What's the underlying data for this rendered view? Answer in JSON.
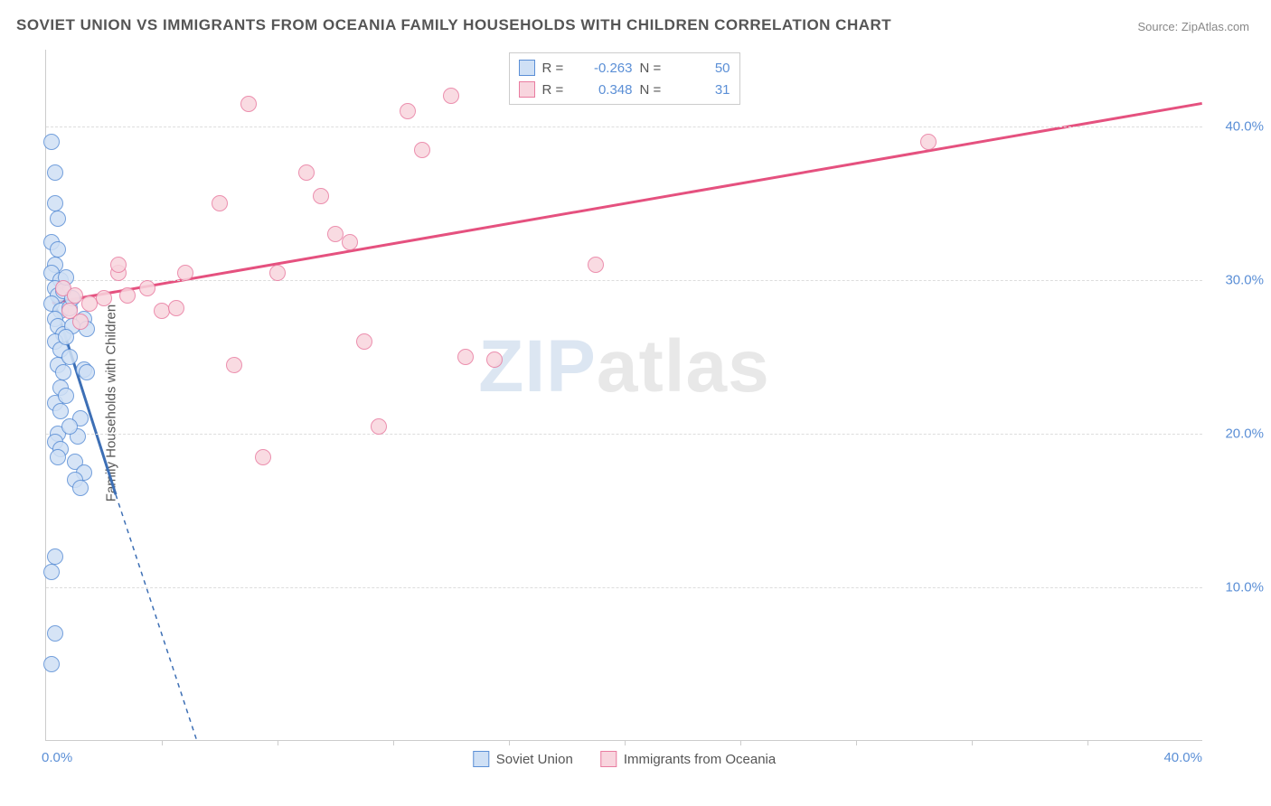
{
  "title": "SOVIET UNION VS IMMIGRANTS FROM OCEANIA FAMILY HOUSEHOLDS WITH CHILDREN CORRELATION CHART",
  "source": "Source: ZipAtlas.com",
  "ylabel": "Family Households with Children",
  "watermark_a": "ZIP",
  "watermark_b": "atlas",
  "chart": {
    "type": "scatter",
    "xlim": [
      0,
      40
    ],
    "ylim": [
      0,
      45
    ],
    "yticks": [
      10,
      20,
      30,
      40
    ],
    "ytick_labels": [
      "10.0%",
      "20.0%",
      "30.0%",
      "40.0%"
    ],
    "xtick_first": "0.0%",
    "xtick_last": "40.0%",
    "x_minor_ticks": [
      4,
      8,
      12,
      16,
      20,
      24,
      28,
      32,
      36
    ],
    "grid_color": "#dddddd",
    "axis_color": "#cccccc",
    "background_color": "#ffffff",
    "point_radius": 9,
    "point_stroke_width": 1.5,
    "series": [
      {
        "name": "Soviet Union",
        "label": "Soviet Union",
        "fill": "#cfe0f5",
        "stroke": "#5b8fd6",
        "line_color": "#3d6fb5",
        "line_width": 3,
        "R": "-0.263",
        "N": "50",
        "trend": {
          "x1": 0.2,
          "y1": 29.0,
          "x2": 2.4,
          "y2": 16.0,
          "dash_to_x": 5.2,
          "dash_to_y": 0
        },
        "points": [
          [
            0.2,
            39.0
          ],
          [
            0.3,
            37.0
          ],
          [
            0.3,
            35.0
          ],
          [
            0.4,
            34.0
          ],
          [
            0.2,
            32.5
          ],
          [
            0.4,
            32.0
          ],
          [
            0.3,
            31.0
          ],
          [
            0.2,
            30.5
          ],
          [
            0.5,
            30.0
          ],
          [
            0.3,
            29.5
          ],
          [
            0.4,
            29.0
          ],
          [
            0.2,
            28.5
          ],
          [
            0.5,
            28.0
          ],
          [
            0.3,
            27.5
          ],
          [
            0.4,
            27.0
          ],
          [
            0.6,
            26.5
          ],
          [
            0.3,
            26.0
          ],
          [
            0.5,
            25.5
          ],
          [
            1.3,
            27.5
          ],
          [
            1.4,
            26.8
          ],
          [
            0.4,
            24.5
          ],
          [
            0.6,
            24.0
          ],
          [
            1.3,
            24.2
          ],
          [
            1.4,
            24.0
          ],
          [
            0.3,
            22.0
          ],
          [
            0.5,
            21.5
          ],
          [
            1.2,
            21.0
          ],
          [
            0.4,
            20.0
          ],
          [
            0.3,
            19.5
          ],
          [
            1.1,
            19.8
          ],
          [
            0.5,
            19.0
          ],
          [
            0.4,
            18.5
          ],
          [
            1.0,
            18.2
          ],
          [
            1.3,
            17.5
          ],
          [
            1.0,
            17.0
          ],
          [
            1.2,
            16.5
          ],
          [
            0.3,
            12.0
          ],
          [
            0.2,
            11.0
          ],
          [
            0.3,
            7.0
          ],
          [
            0.2,
            5.0
          ],
          [
            0.8,
            28.2
          ],
          [
            0.9,
            27.0
          ],
          [
            0.7,
            26.3
          ],
          [
            0.8,
            25.0
          ],
          [
            0.6,
            29.3
          ],
          [
            0.7,
            30.2
          ],
          [
            0.9,
            28.8
          ],
          [
            0.5,
            23.0
          ],
          [
            0.7,
            22.5
          ],
          [
            0.8,
            20.5
          ]
        ]
      },
      {
        "name": "Immigrants from Oceania",
        "label": "Immigrants from Oceania",
        "fill": "#f8d5de",
        "stroke": "#e97ca0",
        "line_color": "#e5517f",
        "line_width": 3,
        "R": "0.348",
        "N": "31",
        "trend": {
          "x1": 0.2,
          "y1": 28.5,
          "x2": 40.0,
          "y2": 41.5
        },
        "points": [
          [
            0.6,
            29.5
          ],
          [
            1.0,
            29.0
          ],
          [
            1.5,
            28.5
          ],
          [
            2.5,
            30.5
          ],
          [
            2.8,
            29.0
          ],
          [
            2.5,
            31.0
          ],
          [
            4.0,
            28.0
          ],
          [
            4.5,
            28.2
          ],
          [
            4.8,
            30.5
          ],
          [
            6.0,
            35.0
          ],
          [
            7.0,
            41.5
          ],
          [
            6.5,
            24.5
          ],
          [
            9.0,
            37.0
          ],
          [
            9.5,
            35.5
          ],
          [
            10.0,
            33.0
          ],
          [
            10.5,
            32.5
          ],
          [
            11.0,
            26.0
          ],
          [
            12.5,
            41.0
          ],
          [
            13.0,
            38.5
          ],
          [
            14.0,
            42.0
          ],
          [
            14.5,
            25.0
          ],
          [
            19.0,
            31.0
          ],
          [
            15.5,
            24.8
          ],
          [
            7.5,
            18.5
          ],
          [
            11.5,
            20.5
          ],
          [
            0.8,
            28.0
          ],
          [
            1.2,
            27.3
          ],
          [
            2.0,
            28.8
          ],
          [
            3.5,
            29.5
          ],
          [
            30.5,
            39.0
          ],
          [
            8.0,
            30.5
          ]
        ]
      }
    ],
    "legend_top": {
      "R_label": "R =",
      "N_label": "N ="
    }
  }
}
